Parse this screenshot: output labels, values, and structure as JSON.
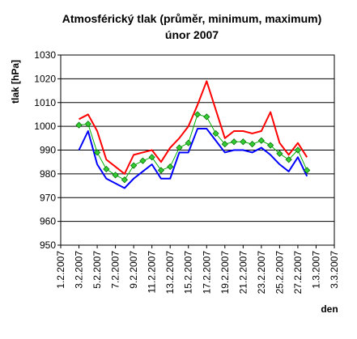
{
  "chart_data": {
    "type": "line",
    "title": "Atmosférický tlak (průměr, minimum, maximum)",
    "subtitle": "únor 2007",
    "xlabel": "den",
    "ylabel": "tlak [hPa]",
    "ylim": [
      950,
      1030
    ],
    "y_ticks": [
      950,
      960,
      970,
      980,
      990,
      1000,
      1010,
      1020,
      1030
    ],
    "xlim": [
      "1.2.2007",
      "3.3.2007"
    ],
    "x_ticks": [
      "1.2.2007",
      "3.2.2007",
      "5.2.2007",
      "7.2.2007",
      "9.2.2007",
      "11.2.2007",
      "13.2.2007",
      "15.2.2007",
      "17.2.2007",
      "19.2.2007",
      "21.2.2007",
      "23.2.2007",
      "25.2.2007",
      "27.2.2007",
      "1.3.2007",
      "3.3.2007"
    ],
    "grid": "horizontal",
    "x": [
      "3.2.2007",
      "4.2.2007",
      "5.2.2007",
      "6.2.2007",
      "7.2.2007",
      "8.2.2007",
      "9.2.2007",
      "10.2.2007",
      "11.2.2007",
      "12.2.2007",
      "13.2.2007",
      "14.2.2007",
      "15.2.2007",
      "16.2.2007",
      "17.2.2007",
      "18.2.2007",
      "19.2.2007",
      "20.2.2007",
      "21.2.2007",
      "22.2.2007",
      "23.2.2007",
      "24.2.2007",
      "25.2.2007",
      "26.2.2007",
      "27.2.2007",
      "28.2.2007"
    ],
    "series": [
      {
        "key": "max",
        "color": "#ff0000",
        "values": [
          1003,
          1005,
          998,
          986,
          983,
          980,
          988,
          989,
          990,
          985,
          991,
          995,
          1000,
          1009,
          1019,
          1007,
          995,
          998,
          998,
          997,
          998,
          1006,
          993,
          988,
          993,
          987
        ]
      },
      {
        "key": "avg",
        "color": "#00b000",
        "marker_color": "#33cc33",
        "values": [
          1000.5,
          1001,
          989,
          982,
          979.5,
          977.5,
          983.5,
          985.5,
          987,
          981.5,
          983,
          991,
          993,
          1005,
          1004,
          997,
          992.5,
          993.5,
          993.5,
          992.5,
          994,
          992,
          988.5,
          986,
          990,
          981.5
        ]
      },
      {
        "key": "min",
        "color": "#0000ff",
        "values": [
          990,
          998,
          984,
          978,
          976,
          974,
          978,
          981,
          984,
          978,
          978,
          989,
          989,
          999,
          999,
          994,
          989,
          990,
          990,
          989,
          991,
          988,
          984,
          981,
          987,
          979
        ]
      }
    ]
  }
}
